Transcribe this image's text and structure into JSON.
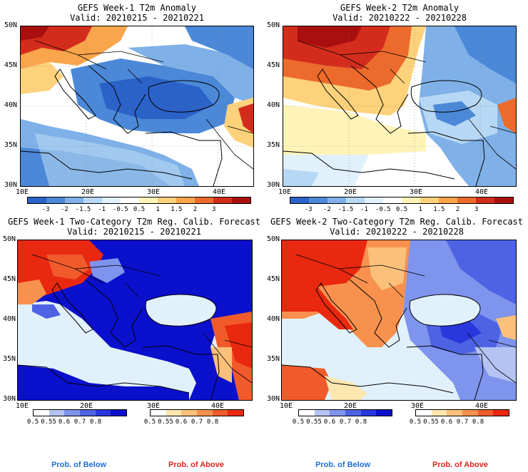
{
  "panels": [
    {
      "title_line1": "GEFS Week-1 T2m Anomaly",
      "title_line2": "Valid: 20210215 - 20210221",
      "lat_ticks": [
        "50N",
        "45N",
        "40N",
        "35N",
        "30N"
      ],
      "lon_ticks": [
        "10E",
        "20E",
        "30E",
        "40E"
      ],
      "cbar_colors": [
        "#2b62c8",
        "#4b88d8",
        "#7fb1e8",
        "#b7d8f4",
        "#e1f1fb",
        "#ffffff",
        "#fff3b8",
        "#fdd27a",
        "#f9a54b",
        "#ec6a2c",
        "#d42c1c",
        "#a90f0f"
      ],
      "cbar_labels": [
        "-3",
        "-2",
        "-1.5",
        "-1",
        "-0.5",
        "0.5",
        "1",
        "1.5",
        "2",
        "3"
      ]
    },
    {
      "title_line1": "GEFS Week-2 T2m Anomaly",
      "title_line2": "Valid: 20210222 - 20210228",
      "lat_ticks": [
        "50N",
        "45N",
        "40N",
        "35N",
        "30N"
      ],
      "lon_ticks": [
        "10E",
        "20E",
        "30E",
        "40E"
      ],
      "cbar_colors": [
        "#2b62c8",
        "#4b88d8",
        "#7fb1e8",
        "#b7d8f4",
        "#e1f1fb",
        "#ffffff",
        "#fff3b8",
        "#fdd27a",
        "#f9a54b",
        "#ec6a2c",
        "#d42c1c",
        "#a90f0f"
      ],
      "cbar_labels": [
        "-3",
        "-2",
        "-1.5",
        "-1",
        "-0.5",
        "0.5",
        "1",
        "1.5",
        "2",
        "3"
      ]
    },
    {
      "title_line1": "GEFS Week-1 Two-Category T2m Reg. Calib. Forecast",
      "title_line2": "Valid: 20210215 - 20210221",
      "lat_ticks": [
        "50N",
        "45N",
        "40N",
        "35N",
        "30N"
      ],
      "lon_ticks": [
        "10E",
        "20E",
        "30E",
        "40E"
      ],
      "below_colors": [
        "#ffffff",
        "#b5c3f2",
        "#7f94ec",
        "#4e63e4",
        "#2a37dc",
        "#0b10cc"
      ],
      "below_labels": [
        "0.5",
        "0.55",
        "0.6",
        "0.7",
        "0.8"
      ],
      "above_colors": [
        "#ffffff",
        "#fde7b0",
        "#fbc17b",
        "#f8914e",
        "#f15b2c",
        "#e8280f"
      ],
      "above_labels": [
        "0.5",
        "0.55",
        "0.6",
        "0.7",
        "0.8"
      ]
    },
    {
      "title_line1": "GEFS Week-2 Two-Category T2m Reg. Calib. Forecast",
      "title_line2": "Valid: 20210222 - 20210228",
      "lat_ticks": [
        "50N",
        "45N",
        "40N",
        "35N",
        "30N"
      ],
      "lon_ticks": [
        "10E",
        "20E",
        "30E",
        "40E"
      ],
      "below_colors": [
        "#ffffff",
        "#b5c3f2",
        "#7f94ec",
        "#4e63e4",
        "#2a37dc",
        "#0b10cc"
      ],
      "below_labels": [
        "0.5",
        "0.55",
        "0.6",
        "0.7",
        "0.8"
      ],
      "above_colors": [
        "#ffffff",
        "#fde7b0",
        "#fbc17b",
        "#f8914e",
        "#f15b2c",
        "#e8280f"
      ],
      "above_labels": [
        "0.5",
        "0.55",
        "0.6",
        "0.7",
        "0.8"
      ]
    }
  ],
  "legend": {
    "below_text": "Prob. of Below",
    "above_text": "Prob. of Above",
    "below_color": "#1f6fe0",
    "above_color": "#e0251a"
  }
}
